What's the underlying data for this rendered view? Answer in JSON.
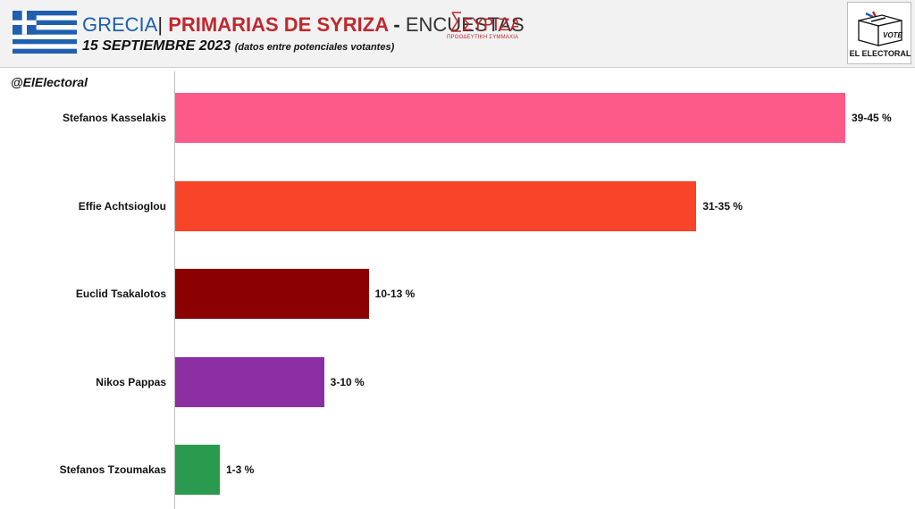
{
  "header": {
    "country": "GRECIA",
    "separator": "|",
    "primary": "PRIMARIAS DE SYRIZA",
    "dash": " - ",
    "poll": "ENCUESTAS",
    "date": "15 SEPTIEMBRE 2023",
    "note": "(datos entre potenciales votantes)",
    "party_logo_text": "ΣΥΡΙΖΑ",
    "party_logo_tagline": "ΠΡΟΟΔΕΥΤΙΚΗ ΣΥΜΜΑΧΙΑ",
    "brand_box_text": "VOTE",
    "brand_label": "EL ELECTORAL"
  },
  "handle": "@ElElectoral",
  "colors": {
    "flag_blue": "#1f5fae",
    "title_red": "#c0282e",
    "title_blue": "#1f5fae"
  },
  "chart_data": {
    "type": "bar",
    "orientation": "horizontal",
    "categories": [
      "Stefanos Kasselakis",
      "Effie Achtsioglou",
      "Euclid Tsakalotos",
      "Nikos Pappas",
      "Stefanos Tzoumakas"
    ],
    "ranges": [
      [
        39,
        45
      ],
      [
        31,
        35
      ],
      [
        10,
        13
      ],
      [
        3,
        10
      ],
      [
        1,
        3
      ]
    ],
    "values": [
      45,
      35,
      13,
      10,
      3
    ],
    "value_labels": [
      "39-45 %",
      "31-35 %",
      "10-13 %",
      "3-10 %",
      "1-3 %"
    ],
    "colors": [
      "#fd5a8a",
      "#f84428",
      "#8b0000",
      "#8b2fa2",
      "#2a9a4e"
    ],
    "xlim": [
      0,
      45
    ],
    "grid": false,
    "legend": "none"
  }
}
